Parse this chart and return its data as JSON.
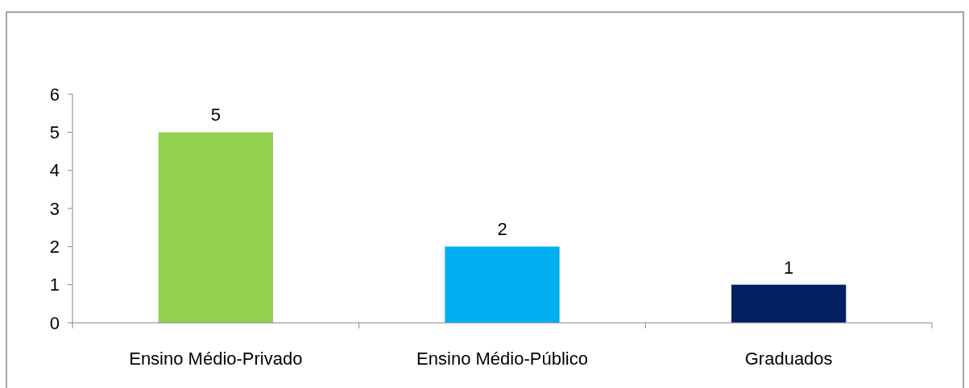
{
  "chart_data": {
    "type": "bar",
    "categories": [
      "Ensino Médio-Privado",
      "Ensino Médio-Público",
      "Graduados"
    ],
    "values": [
      5,
      2,
      1
    ],
    "colors": [
      "#92d050",
      "#00b0f0",
      "#002060"
    ],
    "ylim": [
      0,
      6
    ],
    "yticks": [
      0,
      1,
      2,
      3,
      4,
      5,
      6
    ],
    "data_labels": true,
    "grid": false
  }
}
